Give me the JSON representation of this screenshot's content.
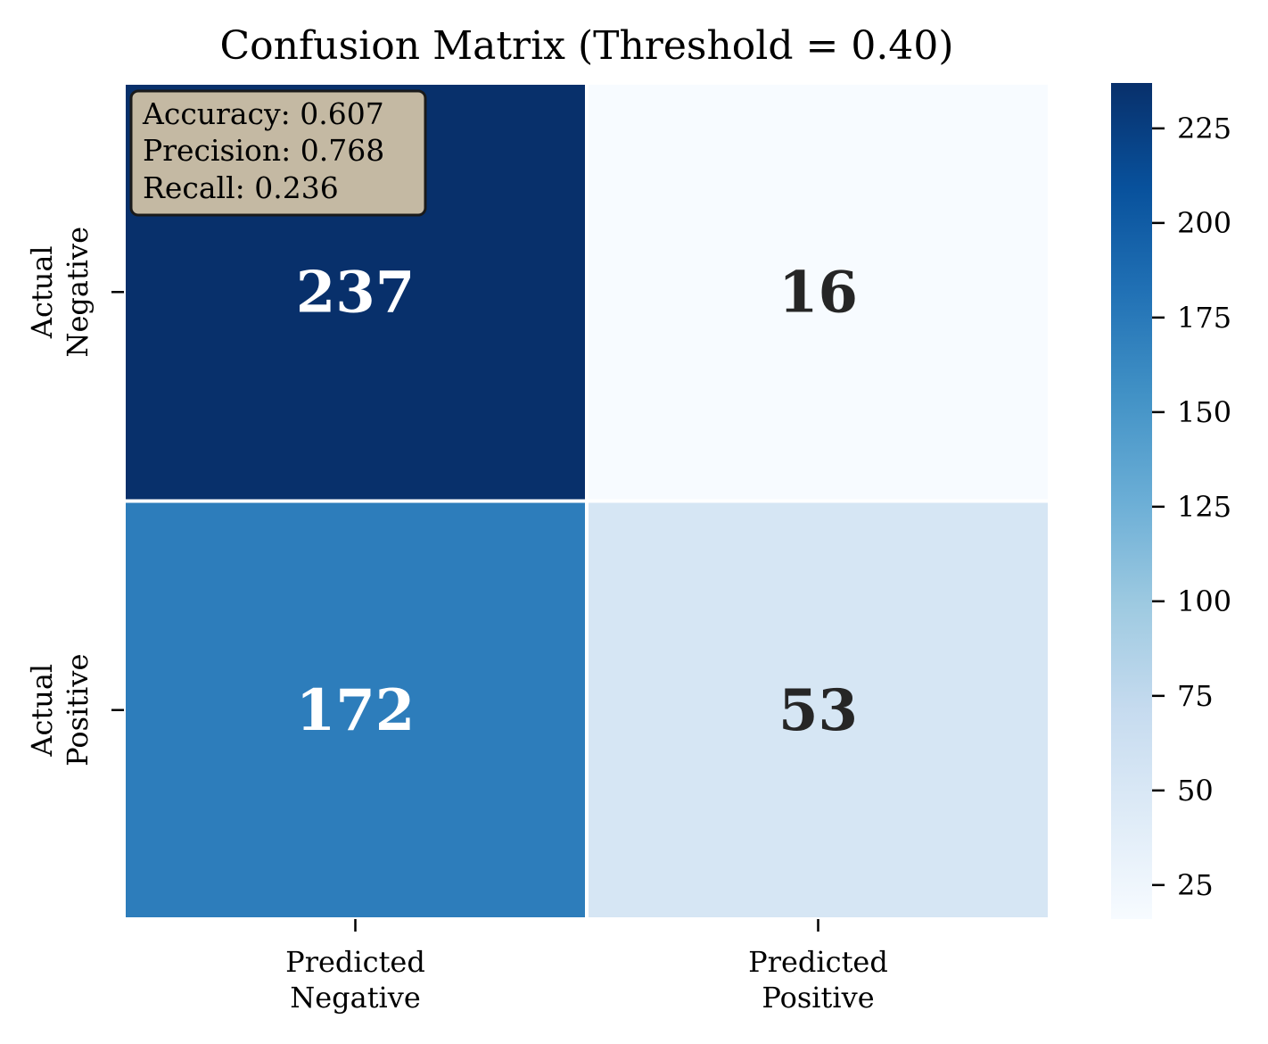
{
  "chart_data": {
    "type": "heatmap",
    "title": "Confusion Matrix (Threshold = 0.40)",
    "xlabel": "",
    "ylabel": "",
    "x_categories": [
      [
        "Predicted",
        "Negative"
      ],
      [
        "Predicted",
        "Positive"
      ]
    ],
    "y_categories": [
      [
        "Actual",
        "Negative"
      ],
      [
        "Actual",
        "Positive"
      ]
    ],
    "values": [
      [
        237,
        16
      ],
      [
        172,
        53
      ]
    ],
    "colormap": "Blues",
    "colorbar": {
      "range": [
        16,
        237
      ],
      "ticks": [
        25,
        50,
        75,
        100,
        125,
        150,
        175,
        200,
        225
      ]
    },
    "annotation_colors": {
      "dark": "#262626",
      "light": "#ffffff"
    },
    "metrics_box": {
      "lines": [
        "Accuracy: 0.607",
        "Precision: 0.768",
        "Recall: 0.236"
      ],
      "background": "#c4b9a3",
      "border": "#1a1a1a"
    }
  }
}
